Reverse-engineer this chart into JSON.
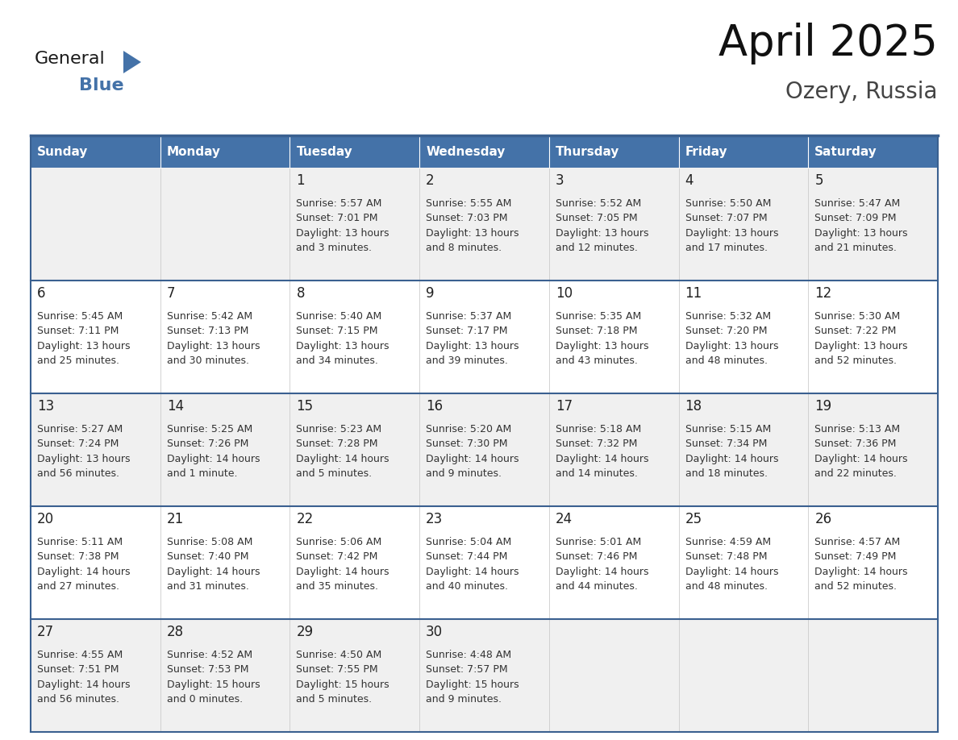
{
  "title": "April 2025",
  "subtitle": "Ozery, Russia",
  "days_of_week": [
    "Sunday",
    "Monday",
    "Tuesday",
    "Wednesday",
    "Thursday",
    "Friday",
    "Saturday"
  ],
  "header_bg": "#4472a8",
  "header_text_color": "#ffffff",
  "cell_bg_white": "#ffffff",
  "cell_bg_gray": "#f0f0f0",
  "border_color": "#3a6090",
  "row_divider_color": "#3a6090",
  "text_color": "#333333",
  "day_num_color": "#222222",
  "calendar_data": [
    [
      {
        "day": null,
        "info": null
      },
      {
        "day": null,
        "info": null
      },
      {
        "day": 1,
        "info": "Sunrise: 5:57 AM\nSunset: 7:01 PM\nDaylight: 13 hours\nand 3 minutes."
      },
      {
        "day": 2,
        "info": "Sunrise: 5:55 AM\nSunset: 7:03 PM\nDaylight: 13 hours\nand 8 minutes."
      },
      {
        "day": 3,
        "info": "Sunrise: 5:52 AM\nSunset: 7:05 PM\nDaylight: 13 hours\nand 12 minutes."
      },
      {
        "day": 4,
        "info": "Sunrise: 5:50 AM\nSunset: 7:07 PM\nDaylight: 13 hours\nand 17 minutes."
      },
      {
        "day": 5,
        "info": "Sunrise: 5:47 AM\nSunset: 7:09 PM\nDaylight: 13 hours\nand 21 minutes."
      }
    ],
    [
      {
        "day": 6,
        "info": "Sunrise: 5:45 AM\nSunset: 7:11 PM\nDaylight: 13 hours\nand 25 minutes."
      },
      {
        "day": 7,
        "info": "Sunrise: 5:42 AM\nSunset: 7:13 PM\nDaylight: 13 hours\nand 30 minutes."
      },
      {
        "day": 8,
        "info": "Sunrise: 5:40 AM\nSunset: 7:15 PM\nDaylight: 13 hours\nand 34 minutes."
      },
      {
        "day": 9,
        "info": "Sunrise: 5:37 AM\nSunset: 7:17 PM\nDaylight: 13 hours\nand 39 minutes."
      },
      {
        "day": 10,
        "info": "Sunrise: 5:35 AM\nSunset: 7:18 PM\nDaylight: 13 hours\nand 43 minutes."
      },
      {
        "day": 11,
        "info": "Sunrise: 5:32 AM\nSunset: 7:20 PM\nDaylight: 13 hours\nand 48 minutes."
      },
      {
        "day": 12,
        "info": "Sunrise: 5:30 AM\nSunset: 7:22 PM\nDaylight: 13 hours\nand 52 minutes."
      }
    ],
    [
      {
        "day": 13,
        "info": "Sunrise: 5:27 AM\nSunset: 7:24 PM\nDaylight: 13 hours\nand 56 minutes."
      },
      {
        "day": 14,
        "info": "Sunrise: 5:25 AM\nSunset: 7:26 PM\nDaylight: 14 hours\nand 1 minute."
      },
      {
        "day": 15,
        "info": "Sunrise: 5:23 AM\nSunset: 7:28 PM\nDaylight: 14 hours\nand 5 minutes."
      },
      {
        "day": 16,
        "info": "Sunrise: 5:20 AM\nSunset: 7:30 PM\nDaylight: 14 hours\nand 9 minutes."
      },
      {
        "day": 17,
        "info": "Sunrise: 5:18 AM\nSunset: 7:32 PM\nDaylight: 14 hours\nand 14 minutes."
      },
      {
        "day": 18,
        "info": "Sunrise: 5:15 AM\nSunset: 7:34 PM\nDaylight: 14 hours\nand 18 minutes."
      },
      {
        "day": 19,
        "info": "Sunrise: 5:13 AM\nSunset: 7:36 PM\nDaylight: 14 hours\nand 22 minutes."
      }
    ],
    [
      {
        "day": 20,
        "info": "Sunrise: 5:11 AM\nSunset: 7:38 PM\nDaylight: 14 hours\nand 27 minutes."
      },
      {
        "day": 21,
        "info": "Sunrise: 5:08 AM\nSunset: 7:40 PM\nDaylight: 14 hours\nand 31 minutes."
      },
      {
        "day": 22,
        "info": "Sunrise: 5:06 AM\nSunset: 7:42 PM\nDaylight: 14 hours\nand 35 minutes."
      },
      {
        "day": 23,
        "info": "Sunrise: 5:04 AM\nSunset: 7:44 PM\nDaylight: 14 hours\nand 40 minutes."
      },
      {
        "day": 24,
        "info": "Sunrise: 5:01 AM\nSunset: 7:46 PM\nDaylight: 14 hours\nand 44 minutes."
      },
      {
        "day": 25,
        "info": "Sunrise: 4:59 AM\nSunset: 7:48 PM\nDaylight: 14 hours\nand 48 minutes."
      },
      {
        "day": 26,
        "info": "Sunrise: 4:57 AM\nSunset: 7:49 PM\nDaylight: 14 hours\nand 52 minutes."
      }
    ],
    [
      {
        "day": 27,
        "info": "Sunrise: 4:55 AM\nSunset: 7:51 PM\nDaylight: 14 hours\nand 56 minutes."
      },
      {
        "day": 28,
        "info": "Sunrise: 4:52 AM\nSunset: 7:53 PM\nDaylight: 15 hours\nand 0 minutes."
      },
      {
        "day": 29,
        "info": "Sunrise: 4:50 AM\nSunset: 7:55 PM\nDaylight: 15 hours\nand 5 minutes."
      },
      {
        "day": 30,
        "info": "Sunrise: 4:48 AM\nSunset: 7:57 PM\nDaylight: 15 hours\nand 9 minutes."
      },
      {
        "day": null,
        "info": null
      },
      {
        "day": null,
        "info": null
      },
      {
        "day": null,
        "info": null
      }
    ]
  ],
  "logo_text_general": "General",
  "logo_text_blue": "Blue",
  "logo_color_general": "#1a1a1a",
  "logo_color_blue": "#4472a8",
  "logo_triangle_color": "#4472a8",
  "title_fontsize": 38,
  "subtitle_fontsize": 20,
  "header_fontsize": 11,
  "day_num_fontsize": 12,
  "info_fontsize": 9
}
